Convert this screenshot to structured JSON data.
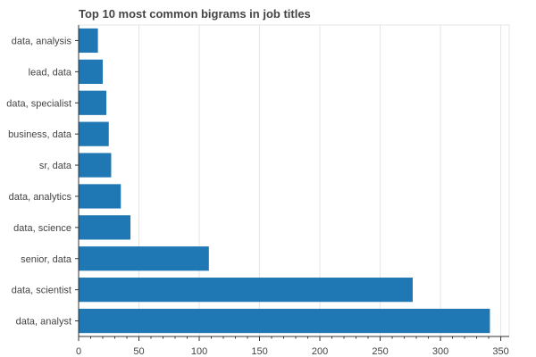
{
  "chart_data": {
    "type": "bar",
    "orientation": "horizontal",
    "title": "Top 10 most common bigrams in job titles",
    "xlabel": "",
    "ylabel": "",
    "categories": [
      "data, analysis",
      "lead, data",
      "data, specialist",
      "business, data",
      "sr, data",
      "data, analytics",
      "data, science",
      "senior, data",
      "data, scientist",
      "data, analyst"
    ],
    "values": [
      16,
      20,
      23,
      25,
      27,
      35,
      43,
      108,
      277,
      341
    ],
    "xlim": [
      0,
      357
    ],
    "x_ticks": [
      0,
      50,
      100,
      150,
      200,
      250,
      300,
      350
    ],
    "grid": "vertical",
    "legend": "none",
    "bar_color": "#1f77b4",
    "grid_color": "#e5e5e5",
    "axis_color": "#333333"
  }
}
